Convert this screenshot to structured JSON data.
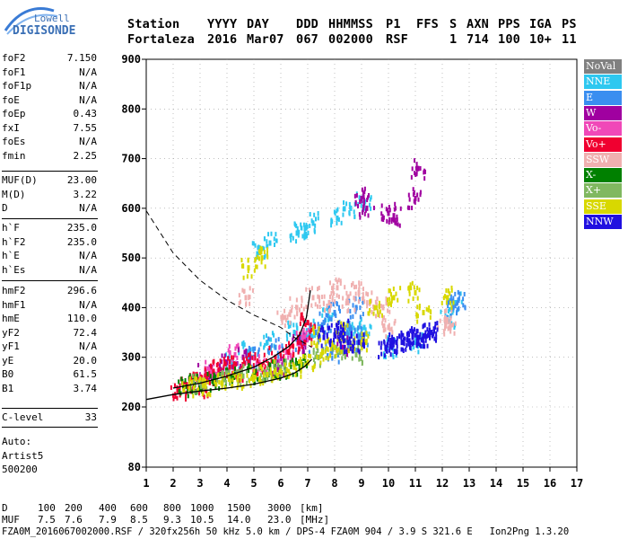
{
  "logo": {
    "line1": "Lowell",
    "line2": "DIGISONDE"
  },
  "header": {
    "labels": [
      "Station",
      "YYYY",
      "DAY",
      "DDD",
      "HHMMSS",
      "P1",
      "FFS",
      "S",
      "AXN",
      "PPS",
      "IGA",
      "PS"
    ],
    "values": [
      "Fortaleza",
      "2016",
      "Mar07",
      "067",
      "002000",
      "RSF",
      "1",
      "714",
      "100",
      "10+",
      "11"
    ]
  },
  "params": {
    "group1": [
      {
        "k": "foF2",
        "v": "7.150"
      },
      {
        "k": "foF1",
        "v": "N/A"
      },
      {
        "k": "foF1p",
        "v": "N/A"
      },
      {
        "k": "foE",
        "v": "N/A"
      },
      {
        "k": "foEp",
        "v": "0.43"
      },
      {
        "k": "fxI",
        "v": "7.55"
      },
      {
        "k": "foEs",
        "v": "N/A"
      },
      {
        "k": "fmin",
        "v": "2.25"
      }
    ],
    "group2": [
      {
        "k": "MUF(D)",
        "v": "23.00"
      },
      {
        "k": "M(D)",
        "v": "3.22"
      },
      {
        "k": "D",
        "v": "N/A"
      }
    ],
    "group3": [
      {
        "k": "h`F",
        "v": "235.0"
      },
      {
        "k": "h`F2",
        "v": "235.0"
      },
      {
        "k": "h`E",
        "v": "N/A"
      },
      {
        "k": "h`Es",
        "v": "N/A"
      }
    ],
    "group4": [
      {
        "k": "hmF2",
        "v": "296.6"
      },
      {
        "k": "hmF1",
        "v": "N/A"
      },
      {
        "k": "hmE",
        "v": "110.0"
      },
      {
        "k": "yF2",
        "v": "72.4"
      },
      {
        "k": "yF1",
        "v": "N/A"
      },
      {
        "k": "yE",
        "v": "20.0"
      },
      {
        "k": "B0",
        "v": "61.5"
      },
      {
        "k": "B1",
        "v": "3.74"
      }
    ],
    "group5": [
      {
        "k": "C-level",
        "v": "33"
      }
    ]
  },
  "auto": {
    "line1": "Auto:",
    "line2": "Artist5",
    "line3": "500200"
  },
  "legend": [
    {
      "label": "NoVal",
      "color": "#808080"
    },
    {
      "label": "NNE",
      "color": "#2ec8f0"
    },
    {
      "label": "E",
      "color": "#3a8ef0"
    },
    {
      "label": "W",
      "color": "#a000a0"
    },
    {
      "label": "Vo-",
      "color": "#f048b8"
    },
    {
      "label": "Vo+",
      "color": "#f00030"
    },
    {
      "label": "SSW",
      "color": "#f0b0b0"
    },
    {
      "label": "X-",
      "color": "#008000"
    },
    {
      "label": "X+",
      "color": "#80b860"
    },
    {
      "label": "SSE",
      "color": "#d8d800"
    },
    {
      "label": "NNW",
      "color": "#2010e0"
    }
  ],
  "footer": {
    "row1_label": "D",
    "row1_values": [
      "100",
      "200",
      "400",
      "600",
      "800",
      "1000",
      "1500",
      "3000"
    ],
    "row1_unit": "[km]",
    "row2_label": "MUF",
    "row2_values": [
      "7.5",
      "7.6",
      "7.9",
      "8.5",
      "9.3",
      "10.5",
      "14.0",
      "23.0"
    ],
    "row2_unit": "[MHz]",
    "file_line": "FZA0M_2016067002000.RSF / 320fx256h 50 kHz 5.0 km / DPS-4 FZA0M 904 / 3.9 S 321.6 E   Ion2Png 1.3.20"
  },
  "chart_data": {
    "type": "scatter",
    "title": "",
    "xlabel": "",
    "ylabel": "",
    "xlim": [
      1,
      17
    ],
    "ylim": [
      80,
      900
    ],
    "x_ticks": [
      1,
      2,
      3,
      4,
      5,
      6,
      7,
      8,
      9,
      10,
      11,
      12,
      13,
      14,
      15,
      16,
      17
    ],
    "y_ticks": [
      80,
      200,
      300,
      400,
      500,
      600,
      700,
      800,
      900
    ],
    "grid": true,
    "series": [
      {
        "name": "NNE",
        "points": [
          [
            4.2,
            290
          ],
          [
            4.8,
            310
          ],
          [
            5.5,
            330
          ],
          [
            6.5,
            350
          ],
          [
            7.2,
            360
          ],
          [
            7.8,
            380
          ],
          [
            8.5,
            350
          ],
          [
            9.1,
            360
          ],
          [
            5.2,
            520
          ],
          [
            5.6,
            530
          ],
          [
            6.6,
            550
          ],
          [
            6.9,
            560
          ],
          [
            7.2,
            570
          ],
          [
            8.1,
            580
          ],
          [
            8.6,
            600
          ],
          [
            9.1,
            610
          ],
          [
            10.1,
            320
          ],
          [
            11.0,
            330
          ],
          [
            12.2,
            380
          ],
          [
            12.5,
            410
          ]
        ]
      },
      {
        "name": "E",
        "points": [
          [
            6.8,
            330
          ],
          [
            7.3,
            350
          ],
          [
            7.6,
            370
          ],
          [
            8.0,
            390
          ],
          [
            8.4,
            360
          ],
          [
            8.8,
            400
          ],
          [
            9.0,
            340
          ],
          [
            7.9,
            310
          ],
          [
            8.7,
            330
          ],
          [
            5.0,
            300
          ],
          [
            5.8,
            320
          ],
          [
            12.4,
            400
          ],
          [
            12.6,
            415
          ]
        ]
      },
      {
        "name": "W",
        "points": [
          [
            3.2,
            270
          ],
          [
            4.0,
            290
          ],
          [
            4.6,
            300
          ],
          [
            5.9,
            280
          ],
          [
            6.7,
            330
          ],
          [
            9.0,
            620
          ],
          [
            9.2,
            600
          ],
          [
            10.0,
            590
          ],
          [
            10.2,
            585
          ],
          [
            11.0,
            620
          ],
          [
            11.1,
            680
          ],
          [
            8.3,
            320
          ]
        ]
      },
      {
        "name": "Vo-",
        "points": [
          [
            3.0,
            260
          ],
          [
            3.4,
            275
          ],
          [
            4.3,
            305
          ],
          [
            5.2,
            290
          ],
          [
            6.2,
            310
          ],
          [
            6.8,
            340
          ]
        ]
      },
      {
        "name": "Vo+",
        "points": [
          [
            2.5,
            245
          ],
          [
            2.9,
            255
          ],
          [
            3.3,
            265
          ],
          [
            3.7,
            275
          ],
          [
            4.1,
            280
          ],
          [
            4.4,
            270
          ],
          [
            4.8,
            290
          ],
          [
            5.3,
            285
          ],
          [
            5.8,
            300
          ],
          [
            6.3,
            310
          ],
          [
            6.9,
            330
          ],
          [
            7.0,
            370
          ],
          [
            2.2,
            235
          ],
          [
            3.1,
            240
          ]
        ]
      },
      {
        "name": "SSW",
        "points": [
          [
            4.7,
            420
          ],
          [
            6.1,
            380
          ],
          [
            6.6,
            400
          ],
          [
            7.2,
            420
          ],
          [
            7.8,
            410
          ],
          [
            8.1,
            440
          ],
          [
            8.9,
            430
          ],
          [
            9.3,
            410
          ],
          [
            10.0,
            360
          ],
          [
            12.3,
            360
          ],
          [
            12.1,
            375
          ],
          [
            9.8,
            400
          ],
          [
            8.5,
            410
          ]
        ]
      },
      {
        "name": "X-",
        "points": [
          [
            2.4,
            240
          ],
          [
            2.8,
            245
          ],
          [
            3.5,
            250
          ],
          [
            4.2,
            260
          ],
          [
            5.0,
            265
          ],
          [
            5.6,
            272
          ],
          [
            6.2,
            275
          ],
          [
            6.8,
            285
          ]
        ]
      },
      {
        "name": "X+",
        "points": [
          [
            3.0,
            248
          ],
          [
            3.9,
            255
          ],
          [
            4.6,
            262
          ],
          [
            5.4,
            270
          ],
          [
            6.0,
            280
          ],
          [
            7.4,
            300
          ],
          [
            8.2,
            310
          ],
          [
            8.8,
            305
          ]
        ]
      },
      {
        "name": "SSE",
        "points": [
          [
            2.6,
            238
          ],
          [
            3.2,
            242
          ],
          [
            3.8,
            248
          ],
          [
            4.4,
            255
          ],
          [
            5.0,
            260
          ],
          [
            5.5,
            265
          ],
          [
            6.0,
            272
          ],
          [
            6.5,
            280
          ],
          [
            7.0,
            290
          ],
          [
            7.5,
            305
          ],
          [
            8.0,
            320
          ],
          [
            8.5,
            330
          ],
          [
            9.0,
            330
          ],
          [
            9.5,
            400
          ],
          [
            10.2,
            420
          ],
          [
            11.0,
            430
          ],
          [
            11.3,
            390
          ],
          [
            12.2,
            420
          ],
          [
            4.8,
            480
          ],
          [
            5.3,
            500
          ],
          [
            7.4,
            340
          ],
          [
            8.3,
            350
          ]
        ]
      },
      {
        "name": "NNW",
        "points": [
          [
            9.9,
            320
          ],
          [
            10.1,
            325
          ],
          [
            10.3,
            330
          ],
          [
            10.5,
            330
          ],
          [
            10.7,
            335
          ],
          [
            10.9,
            340
          ],
          [
            11.1,
            340
          ],
          [
            11.3,
            342
          ],
          [
            11.5,
            345
          ],
          [
            11.6,
            350
          ],
          [
            8.0,
            345
          ],
          [
            8.5,
            330
          ],
          [
            7.6,
            340
          ],
          [
            8.3,
            355
          ],
          [
            8.9,
            330
          ]
        ]
      }
    ],
    "profile_curve": [
      [
        1.0,
        215
      ],
      [
        2.0,
        225
      ],
      [
        3.0,
        232
      ],
      [
        4.0,
        238
      ],
      [
        5.0,
        246
      ],
      [
        6.0,
        258
      ],
      [
        6.5,
        268
      ],
      [
        6.9,
        282
      ],
      [
        7.15,
        296
      ]
    ],
    "trace_curve": [
      [
        2.0,
        238
      ],
      [
        3.0,
        248
      ],
      [
        4.0,
        262
      ],
      [
        5.0,
        280
      ],
      [
        5.7,
        300
      ],
      [
        6.3,
        322
      ],
      [
        6.7,
        345
      ],
      [
        6.95,
        380
      ],
      [
        7.1,
        435
      ]
    ],
    "virtual_height_curve": [
      [
        1.0,
        595
      ],
      [
        2.0,
        510
      ],
      [
        3.0,
        455
      ],
      [
        4.0,
        415
      ],
      [
        5.0,
        385
      ],
      [
        6.0,
        360
      ],
      [
        6.5,
        340
      ],
      [
        7.0,
        325
      ],
      [
        7.15,
        320
      ]
    ]
  }
}
